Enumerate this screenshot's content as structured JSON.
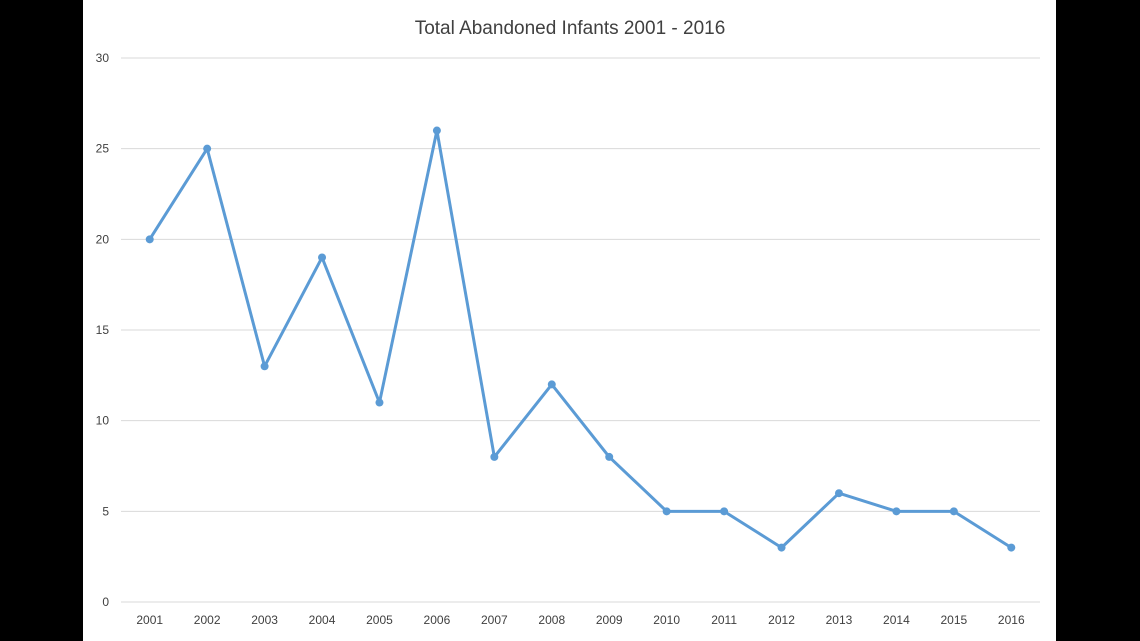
{
  "colors": {
    "frame_background": "#000000",
    "plot_background": "#ffffff",
    "series_line": "#5b9bd5",
    "gridline": "#d9d9d9",
    "text": "#404040"
  },
  "chart_data": {
    "type": "line",
    "title": "Total Abandoned Infants 2001 - 2016",
    "xlabel": "",
    "ylabel": "",
    "categories": [
      "2001",
      "2002",
      "2003",
      "2004",
      "2005",
      "2006",
      "2007",
      "2008",
      "2009",
      "2010",
      "2011",
      "2012",
      "2013",
      "2014",
      "2015",
      "2016"
    ],
    "series": [
      {
        "values": [
          20,
          25,
          13,
          19,
          11,
          26,
          8,
          12,
          8,
          5,
          5,
          3,
          6,
          5,
          5,
          3
        ],
        "color": "#5b9bd5",
        "markers": true
      }
    ],
    "ylim": [
      0,
      30
    ],
    "yticks": [
      0,
      5,
      10,
      15,
      20,
      25,
      30
    ],
    "grid": "horizontal",
    "legend": "none"
  }
}
